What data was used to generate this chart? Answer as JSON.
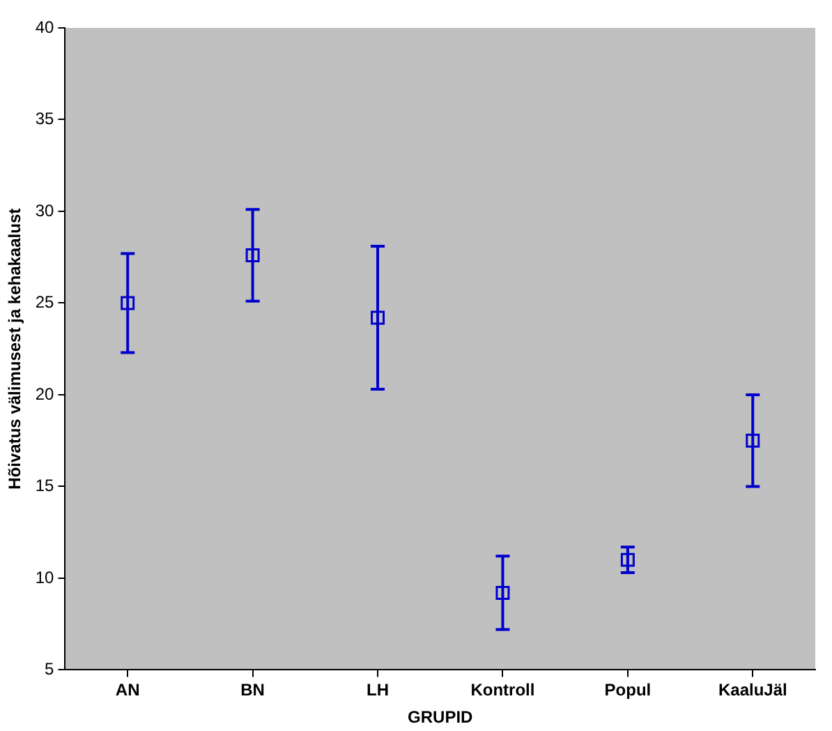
{
  "chart_data": {
    "type": "scatter",
    "xlabel": "GRUPID",
    "ylabel": "Hõivatus välimusest ja kehakaalust",
    "categories": [
      "AN",
      "BN",
      "LH",
      "Kontroll",
      "Popul",
      "KaaluJäl"
    ],
    "series": [
      {
        "color": "#0000cc",
        "values": [
          25.0,
          27.6,
          24.2,
          9.2,
          11.0,
          17.5
        ],
        "errors": [
          2.7,
          2.5,
          3.9,
          2.0,
          0.7,
          2.5
        ]
      }
    ],
    "ylim": [
      5,
      40
    ],
    "yticks": [
      5,
      10,
      15,
      20,
      25,
      30,
      35,
      40
    ],
    "grid": false,
    "legend": false,
    "marker": "square"
  }
}
